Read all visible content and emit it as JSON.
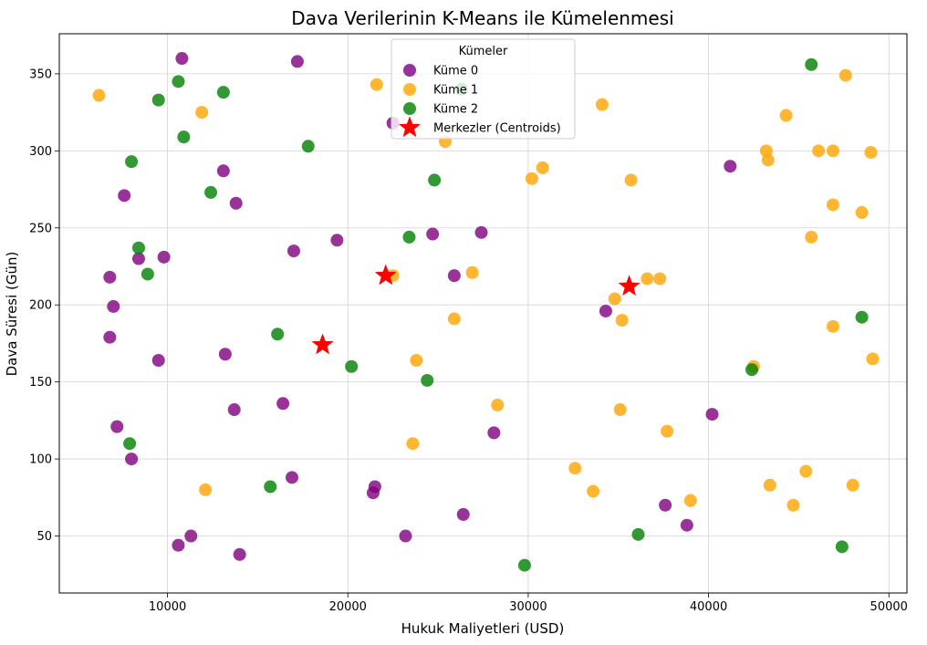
{
  "chart_data": {
    "type": "scatter",
    "title": "Dava Verilerinin K-Means ile Kümelenmesi",
    "xlabel": "Hukuk Maliyetleri (USD)",
    "ylabel": "Dava Süresi (Gün)",
    "xlim": [
      4000,
      51000
    ],
    "ylim": [
      13,
      376
    ],
    "xticks": [
      10000,
      20000,
      30000,
      40000,
      50000
    ],
    "yticks": [
      50,
      100,
      150,
      200,
      250,
      300,
      350
    ],
    "grid": true,
    "legend": {
      "title": "Kümeler",
      "placement": "top-center"
    },
    "series": [
      {
        "name": "Küme 0",
        "color": "#800080",
        "points": [
          [
            10800,
            360
          ],
          [
            17200,
            358
          ],
          [
            22500,
            318
          ],
          [
            13100,
            287
          ],
          [
            7600,
            271
          ],
          [
            13800,
            266
          ],
          [
            19400,
            242
          ],
          [
            24700,
            246
          ],
          [
            27400,
            247
          ],
          [
            17000,
            235
          ],
          [
            8400,
            230
          ],
          [
            9800,
            231
          ],
          [
            6800,
            218
          ],
          [
            25900,
            219
          ],
          [
            7000,
            199
          ],
          [
            34300,
            196
          ],
          [
            6800,
            179
          ],
          [
            9500,
            164
          ],
          [
            13200,
            168
          ],
          [
            16400,
            136
          ],
          [
            13700,
            132
          ],
          [
            7200,
            121
          ],
          [
            28100,
            117
          ],
          [
            40200,
            129
          ],
          [
            41200,
            290
          ],
          [
            8000,
            100
          ],
          [
            16900,
            88
          ],
          [
            21500,
            82
          ],
          [
            21400,
            78
          ],
          [
            26400,
            64
          ],
          [
            37600,
            70
          ],
          [
            38800,
            57
          ],
          [
            11300,
            50
          ],
          [
            10600,
            44
          ],
          [
            14000,
            38
          ],
          [
            23200,
            50
          ]
        ]
      },
      {
        "name": "Küme 1",
        "color": "#ffa500",
        "points": [
          [
            6200,
            336
          ],
          [
            11900,
            325
          ],
          [
            21600,
            343
          ],
          [
            25400,
            306
          ],
          [
            34100,
            330
          ],
          [
            30200,
            282
          ],
          [
            30800,
            289
          ],
          [
            35700,
            281
          ],
          [
            43200,
            300
          ],
          [
            43300,
            294
          ],
          [
            44300,
            323
          ],
          [
            46100,
            300
          ],
          [
            46900,
            300
          ],
          [
            47600,
            349
          ],
          [
            49000,
            299
          ],
          [
            46900,
            265
          ],
          [
            48500,
            260
          ],
          [
            45700,
            244
          ],
          [
            22500,
            219
          ],
          [
            26900,
            221
          ],
          [
            36600,
            217
          ],
          [
            37300,
            217
          ],
          [
            34800,
            204
          ],
          [
            25900,
            191
          ],
          [
            35200,
            190
          ],
          [
            46900,
            186
          ],
          [
            23800,
            164
          ],
          [
            42500,
            160
          ],
          [
            49100,
            165
          ],
          [
            28300,
            135
          ],
          [
            35100,
            132
          ],
          [
            37700,
            118
          ],
          [
            23600,
            110
          ],
          [
            32600,
            94
          ],
          [
            33600,
            79
          ],
          [
            12100,
            80
          ],
          [
            39000,
            73
          ],
          [
            43400,
            83
          ],
          [
            45400,
            92
          ],
          [
            48000,
            83
          ],
          [
            44700,
            70
          ]
        ]
      },
      {
        "name": "Küme 2",
        "color": "#008000",
        "points": [
          [
            10600,
            345
          ],
          [
            9500,
            333
          ],
          [
            13100,
            338
          ],
          [
            26300,
            340
          ],
          [
            10900,
            309
          ],
          [
            17800,
            303
          ],
          [
            8000,
            293
          ],
          [
            12400,
            273
          ],
          [
            24800,
            281
          ],
          [
            45700,
            356
          ],
          [
            8400,
            237
          ],
          [
            8900,
            220
          ],
          [
            23400,
            244
          ],
          [
            16100,
            181
          ],
          [
            20200,
            160
          ],
          [
            24400,
            151
          ],
          [
            7900,
            110
          ],
          [
            15700,
            82
          ],
          [
            42400,
            158
          ],
          [
            48500,
            192
          ],
          [
            36100,
            51
          ],
          [
            29800,
            31
          ],
          [
            47400,
            43
          ]
        ]
      },
      {
        "name": "Merkezler (Centroids)",
        "color": "#ff0000",
        "marker": "star",
        "points": [
          [
            22100,
            219
          ],
          [
            18600,
            174
          ],
          [
            35600,
            212
          ]
        ]
      }
    ]
  }
}
